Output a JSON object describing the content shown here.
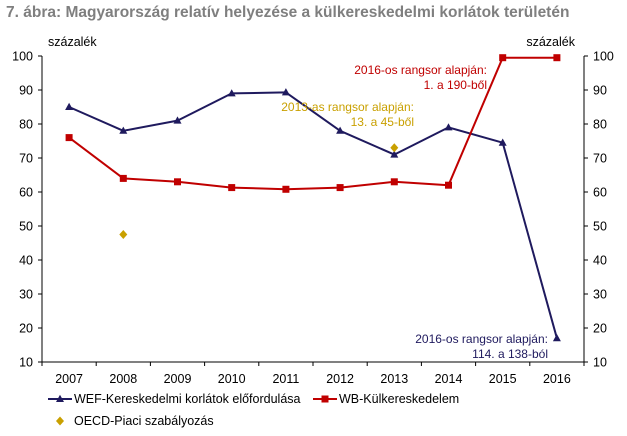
{
  "title": "7. ábra: Magyarország relatív helyezése a külkereskedelmi korlátok területén",
  "chart_data": {
    "type": "line",
    "ylabel_left": "százalék",
    "ylabel_right": "százalék",
    "x": [
      "2007",
      "2008",
      "2009",
      "2010",
      "2011",
      "2012",
      "2013",
      "2014",
      "2015",
      "2016"
    ],
    "ylim": [
      10,
      100
    ],
    "yticks": [
      10,
      20,
      30,
      40,
      50,
      60,
      70,
      80,
      90,
      100
    ],
    "grid": false,
    "legend_position": "bottom",
    "series": [
      {
        "name": "WEF-Kereskedelmi korlátok előfordulása",
        "color": "#1f1a5e",
        "marker": "triangle",
        "values": [
          85,
          78,
          81,
          89,
          89.3,
          78,
          71,
          79,
          74.5,
          17
        ]
      },
      {
        "name": "WB-Külkereskedelem",
        "color": "#c00000",
        "marker": "square",
        "values": [
          76,
          64,
          63,
          61.3,
          60.8,
          61.3,
          63,
          62,
          99.5,
          99.5
        ]
      },
      {
        "name": "OECD-Piaci szabályozás",
        "color": "#c9a000",
        "marker": "diamond",
        "line": false,
        "points": [
          {
            "x": "2008",
            "y": 47.5
          },
          {
            "x": "2013",
            "y": 73
          }
        ]
      }
    ],
    "annotations": [
      {
        "lines": [
          "2016-os rangsor alapján:",
          "1. a 190-ből"
        ],
        "color": "#c00000"
      },
      {
        "lines": [
          "2013-as rangsor alapján:",
          "13. a 45-ből"
        ],
        "color": "#c9a000"
      },
      {
        "lines": [
          "2016-os rangsor alapján:",
          "114. a 138-ból"
        ],
        "color": "#1f1a5e"
      }
    ]
  }
}
